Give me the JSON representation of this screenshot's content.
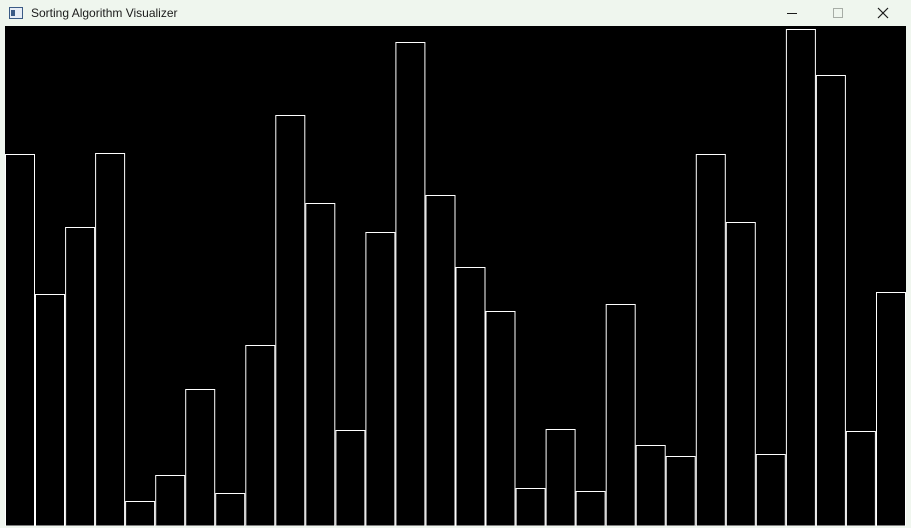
{
  "window": {
    "title": "Sorting Algorithm Visualizer",
    "icons": [
      "app-icon",
      "minimize-icon",
      "maximize-icon",
      "close-icon"
    ]
  },
  "colors": {
    "canvas_background": "#000000",
    "bar_outline": "#ffffff",
    "titlebar_background": "#eff6ee"
  },
  "bars": {
    "max_value": 500,
    "values": [
      372,
      232,
      299,
      373,
      25,
      51,
      137,
      33,
      181,
      411,
      323,
      96,
      294,
      484,
      331,
      259,
      215,
      38,
      97,
      35,
      222,
      81,
      70,
      372,
      304,
      72,
      497,
      451,
      95,
      234
    ]
  }
}
